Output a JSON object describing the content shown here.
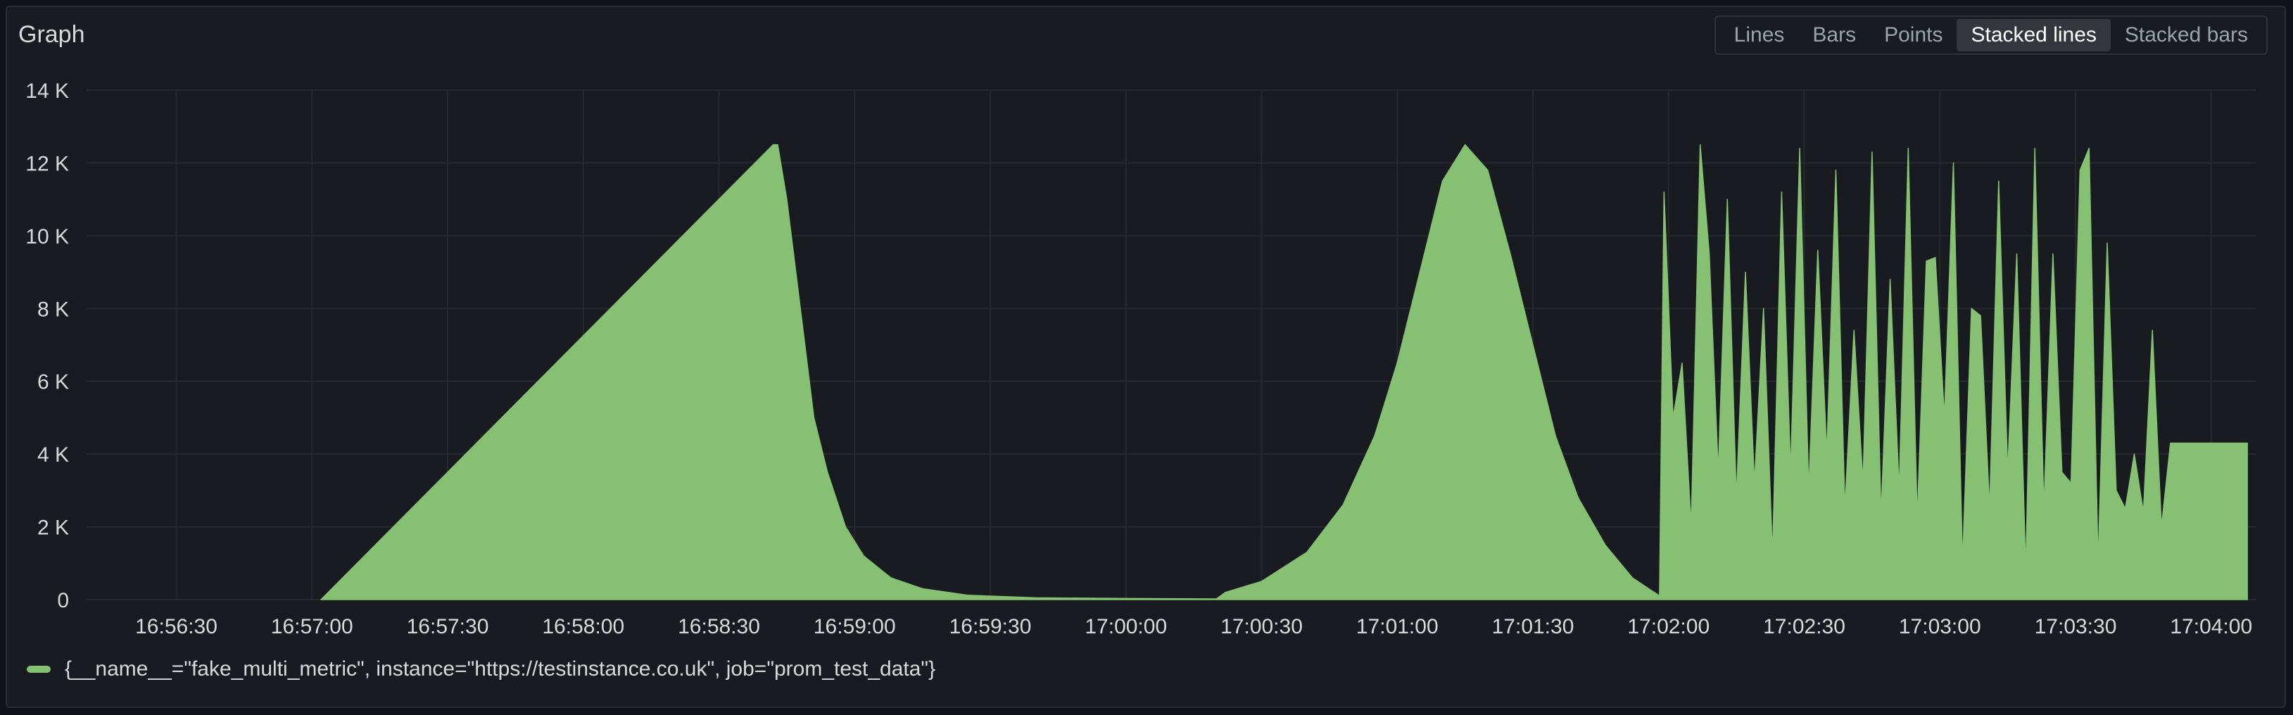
{
  "panel": {
    "title": "Graph"
  },
  "vis_toggle": {
    "options": [
      "Lines",
      "Bars",
      "Points",
      "Stacked lines",
      "Stacked bars"
    ],
    "selected": "Stacked lines"
  },
  "colors": {
    "series": "#86c073",
    "grid": "#26292e",
    "text": "#d8d9da"
  },
  "chart_data": {
    "type": "area",
    "stacked": true,
    "xlim": [
      "16:56:10",
      "17:04:10"
    ],
    "ylim": [
      0,
      14000
    ],
    "x_ticks": [
      "16:56:30",
      "16:57:00",
      "16:57:30",
      "16:58:00",
      "16:58:30",
      "16:59:00",
      "16:59:30",
      "17:00:00",
      "17:00:30",
      "17:01:00",
      "17:01:30",
      "17:02:00",
      "17:02:30",
      "17:03:00",
      "17:03:30",
      "17:04:00"
    ],
    "y_ticks": [
      "0",
      "2 K",
      "4 K",
      "6 K",
      "8 K",
      "10 K",
      "12 K",
      "14 K"
    ],
    "grid": true,
    "legend_position": "bottom-left",
    "series": [
      {
        "name": "{__name__=\"fake_multi_metric\", instance=\"https://testinstance.co.uk\", job=\"prom_test_data\"}",
        "points": [
          [
            "16:57:02",
            0
          ],
          [
            "16:58:42",
            12500
          ],
          [
            "16:58:43",
            12500
          ],
          [
            "16:58:45",
            11000
          ],
          [
            "16:58:48",
            8000
          ],
          [
            "16:58:51",
            5000
          ],
          [
            "16:58:54",
            3500
          ],
          [
            "16:58:58",
            2000
          ],
          [
            "16:59:02",
            1200
          ],
          [
            "16:59:08",
            600
          ],
          [
            "16:59:15",
            300
          ],
          [
            "16:59:25",
            120
          ],
          [
            "16:59:40",
            50
          ],
          [
            "17:00:00",
            30
          ],
          [
            "17:00:20",
            20
          ],
          [
            "17:00:22",
            200
          ],
          [
            "17:00:30",
            500
          ],
          [
            "17:00:40",
            1300
          ],
          [
            "17:00:48",
            2600
          ],
          [
            "17:00:55",
            4500
          ],
          [
            "17:01:00",
            6500
          ],
          [
            "17:01:05",
            9000
          ],
          [
            "17:01:10",
            11500
          ],
          [
            "17:01:15",
            12500
          ],
          [
            "17:01:20",
            11800
          ],
          [
            "17:01:25",
            9500
          ],
          [
            "17:01:30",
            7000
          ],
          [
            "17:01:35",
            4500
          ],
          [
            "17:01:40",
            2800
          ],
          [
            "17:01:46",
            1500
          ],
          [
            "17:01:52",
            600
          ],
          [
            "17:01:58",
            100
          ],
          [
            "17:01:59",
            11200
          ],
          [
            "17:02:01",
            5000
          ],
          [
            "17:02:03",
            6500
          ],
          [
            "17:02:05",
            2000
          ],
          [
            "17:02:07",
            12500
          ],
          [
            "17:02:09",
            9500
          ],
          [
            "17:02:11",
            3500
          ],
          [
            "17:02:13",
            11000
          ],
          [
            "17:02:15",
            2800
          ],
          [
            "17:02:17",
            9000
          ],
          [
            "17:02:19",
            3200
          ],
          [
            "17:02:21",
            8000
          ],
          [
            "17:02:23",
            1200
          ],
          [
            "17:02:25",
            11200
          ],
          [
            "17:02:27",
            3500
          ],
          [
            "17:02:29",
            12400
          ],
          [
            "17:02:31",
            3000
          ],
          [
            "17:02:33",
            9600
          ],
          [
            "17:02:35",
            4000
          ],
          [
            "17:02:37",
            11800
          ],
          [
            "17:02:39",
            2500
          ],
          [
            "17:02:41",
            7400
          ],
          [
            "17:02:43",
            3200
          ],
          [
            "17:02:45",
            12300
          ],
          [
            "17:02:47",
            2300
          ],
          [
            "17:02:49",
            8800
          ],
          [
            "17:02:51",
            3000
          ],
          [
            "17:02:53",
            12400
          ],
          [
            "17:02:55",
            2200
          ],
          [
            "17:02:57",
            9300
          ],
          [
            "17:02:59",
            9400
          ],
          [
            "17:03:01",
            5000
          ],
          [
            "17:03:03",
            12000
          ],
          [
            "17:03:05",
            1000
          ],
          [
            "17:03:07",
            8000
          ],
          [
            "17:03:09",
            7800
          ],
          [
            "17:03:11",
            2500
          ],
          [
            "17:03:13",
            11500
          ],
          [
            "17:03:15",
            3500
          ],
          [
            "17:03:17",
            9500
          ],
          [
            "17:03:19",
            800
          ],
          [
            "17:03:21",
            12400
          ],
          [
            "17:03:23",
            2500
          ],
          [
            "17:03:25",
            9500
          ],
          [
            "17:03:27",
            3500
          ],
          [
            "17:03:29",
            3200
          ],
          [
            "17:03:31",
            11800
          ],
          [
            "17:03:33",
            12400
          ],
          [
            "17:03:35",
            1000
          ],
          [
            "17:03:37",
            9800
          ],
          [
            "17:03:39",
            3000
          ],
          [
            "17:03:41",
            2500
          ],
          [
            "17:03:43",
            4000
          ],
          [
            "17:03:45",
            2400
          ],
          [
            "17:03:47",
            7400
          ],
          [
            "17:03:49",
            2000
          ],
          [
            "17:03:51",
            4300
          ],
          [
            "17:04:08",
            4300
          ]
        ]
      }
    ]
  }
}
